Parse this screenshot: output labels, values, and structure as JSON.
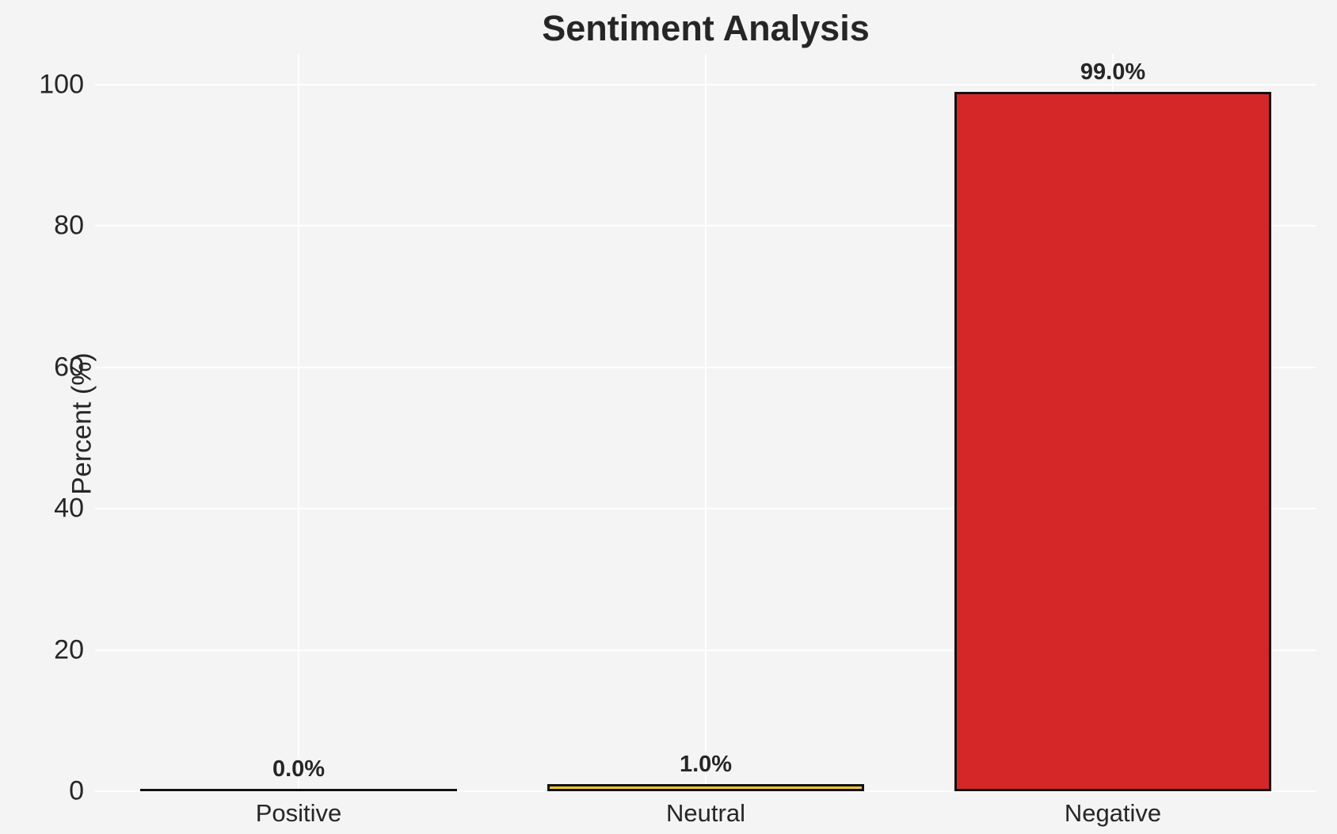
{
  "chart_data": {
    "type": "bar",
    "title": "Sentiment Analysis",
    "xlabel": "",
    "ylabel": "Percent (%)",
    "categories": [
      "Positive",
      "Neutral",
      "Negative"
    ],
    "values": [
      0.0,
      1.0,
      99.0
    ],
    "value_labels": [
      "0.0%",
      "1.0%",
      "99.0%"
    ],
    "bar_colors": [
      null,
      "#f3c82c",
      "#d62728"
    ],
    "bar_edge_color": "#111111",
    "yticks": [
      0,
      20,
      40,
      60,
      80,
      100
    ],
    "ytick_labels": [
      "0",
      "20",
      "40",
      "60",
      "80",
      "100"
    ],
    "ylim": [
      0,
      104
    ],
    "grid": true,
    "grid_color": "#ffffff",
    "background_color": "#f4f4f5",
    "text_color": "#262626",
    "legend_position": "none"
  }
}
